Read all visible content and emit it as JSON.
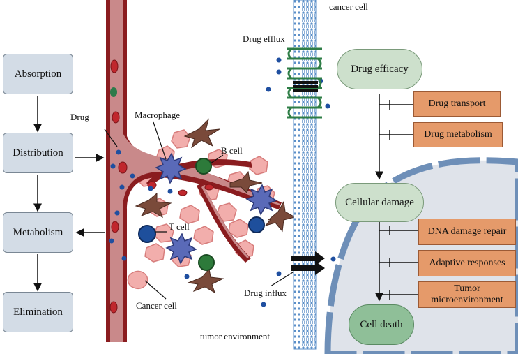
{
  "pk_steps": [
    "Absorption",
    "Distribution",
    "Metabolism",
    "Elimination"
  ],
  "labels": {
    "cancer_cell_top": "cancer cell",
    "drug_efflux": "Drug efflux",
    "drug": "Drug",
    "macrophage": "Macrophage",
    "b_cell": "B cell",
    "t_cell": "T cell",
    "cancer_cell": "Cancer cell",
    "drug_influx": "Drug influx",
    "tumor_environment": "tumor environment"
  },
  "flow": {
    "drug_efficacy": "Drug efficacy",
    "cellular_damage": "Cellular damage",
    "cell_death": "Cell death"
  },
  "inhibitors": {
    "drug_transport": "Drug transport",
    "drug_metabolism": "Drug metabolism",
    "dna_damage_repair": "DNA damage repair",
    "adaptive_responses": "Adaptive responses",
    "tumor_microenvironment": "Tumor microenvironment"
  },
  "colors": {
    "vessel": "#8a1c1f",
    "vessel_inner": "#c9898a",
    "pk_box": "#d3dce6",
    "pill_green": "#cde0cc",
    "cell_death_green": "#8fbf98",
    "inhibitor_orange": "#e59a6a",
    "nucleus": "#dfe3ea",
    "nucleus_membrane": "#6e8fb8",
    "drug_dot": "#1f4fa0"
  }
}
